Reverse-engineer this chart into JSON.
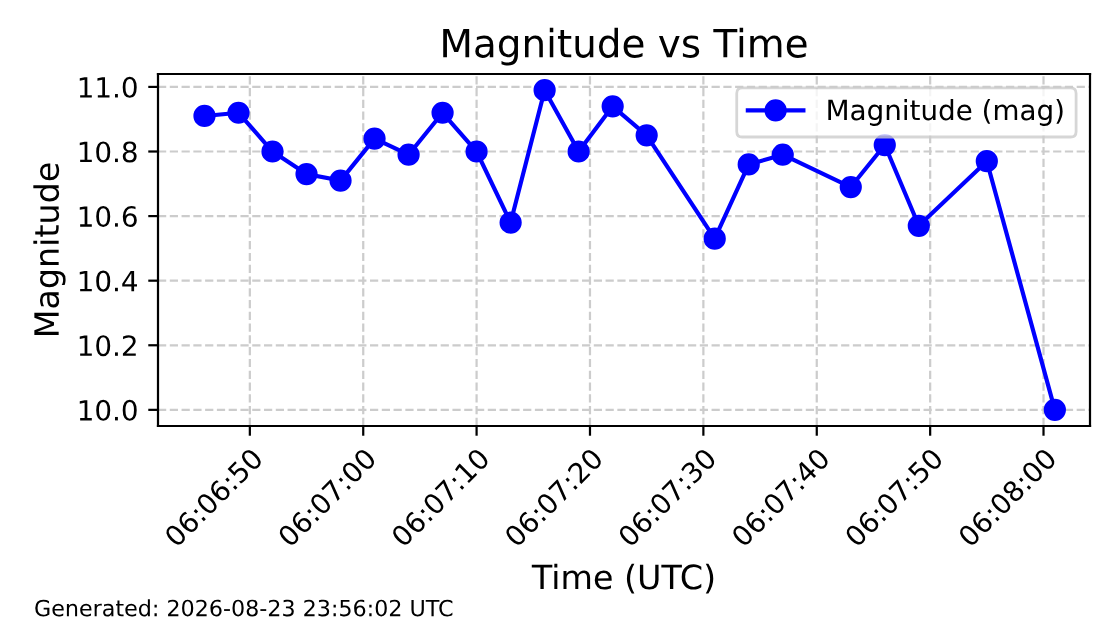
{
  "chart_data": {
    "type": "line",
    "title": "Magnitude vs Time",
    "xlabel": "Time (UTC)",
    "ylabel": "Magnitude",
    "x": [
      6.112778,
      6.113611,
      6.114444,
      6.115278,
      6.116111,
      6.116944,
      6.117778,
      6.118611,
      6.119444,
      6.120278,
      6.121111,
      6.121944,
      6.122778,
      6.123611,
      6.125278,
      6.126111,
      6.126944,
      6.128611,
      6.129444,
      6.130278,
      6.131944,
      6.133611
    ],
    "series": [
      {
        "name": "Magnitude (mag)",
        "color": "#0000ff",
        "values": [
          10.91,
          10.92,
          10.8,
          10.73,
          10.71,
          10.84,
          10.79,
          10.92,
          10.8,
          10.58,
          10.99,
          10.8,
          10.94,
          10.85,
          10.53,
          10.76,
          10.79,
          10.69,
          10.82,
          10.57,
          10.77,
          10.0
        ]
      }
    ],
    "xlim": [
      6.111639,
      6.134472
    ],
    "xticks": [
      {
        "value": 6.113889,
        "label": "06:06:50"
      },
      {
        "value": 6.116667,
        "label": "06:07:00"
      },
      {
        "value": 6.119444,
        "label": "06:07:10"
      },
      {
        "value": 6.122222,
        "label": "06:07:20"
      },
      {
        "value": 6.125,
        "label": "06:07:30"
      },
      {
        "value": 6.127778,
        "label": "06:07:40"
      },
      {
        "value": 6.130556,
        "label": "06:07:50"
      },
      {
        "value": 6.133333,
        "label": "06:08:00"
      }
    ],
    "ylim": [
      9.95,
      11.04
    ],
    "yticks": [
      {
        "value": 10.0,
        "label": "10.0"
      },
      {
        "value": 10.2,
        "label": "10.2"
      },
      {
        "value": 10.4,
        "label": "10.4"
      },
      {
        "value": 10.6,
        "label": "10.6"
      },
      {
        "value": 10.8,
        "label": "10.8"
      },
      {
        "value": 11.0,
        "label": "11.0"
      }
    ],
    "grid": true,
    "legend": "top right",
    "marker": "circle",
    "line_style": "solid",
    "annotations": [
      "Generated: 2026-08-23 23:56:02 UTC"
    ]
  }
}
